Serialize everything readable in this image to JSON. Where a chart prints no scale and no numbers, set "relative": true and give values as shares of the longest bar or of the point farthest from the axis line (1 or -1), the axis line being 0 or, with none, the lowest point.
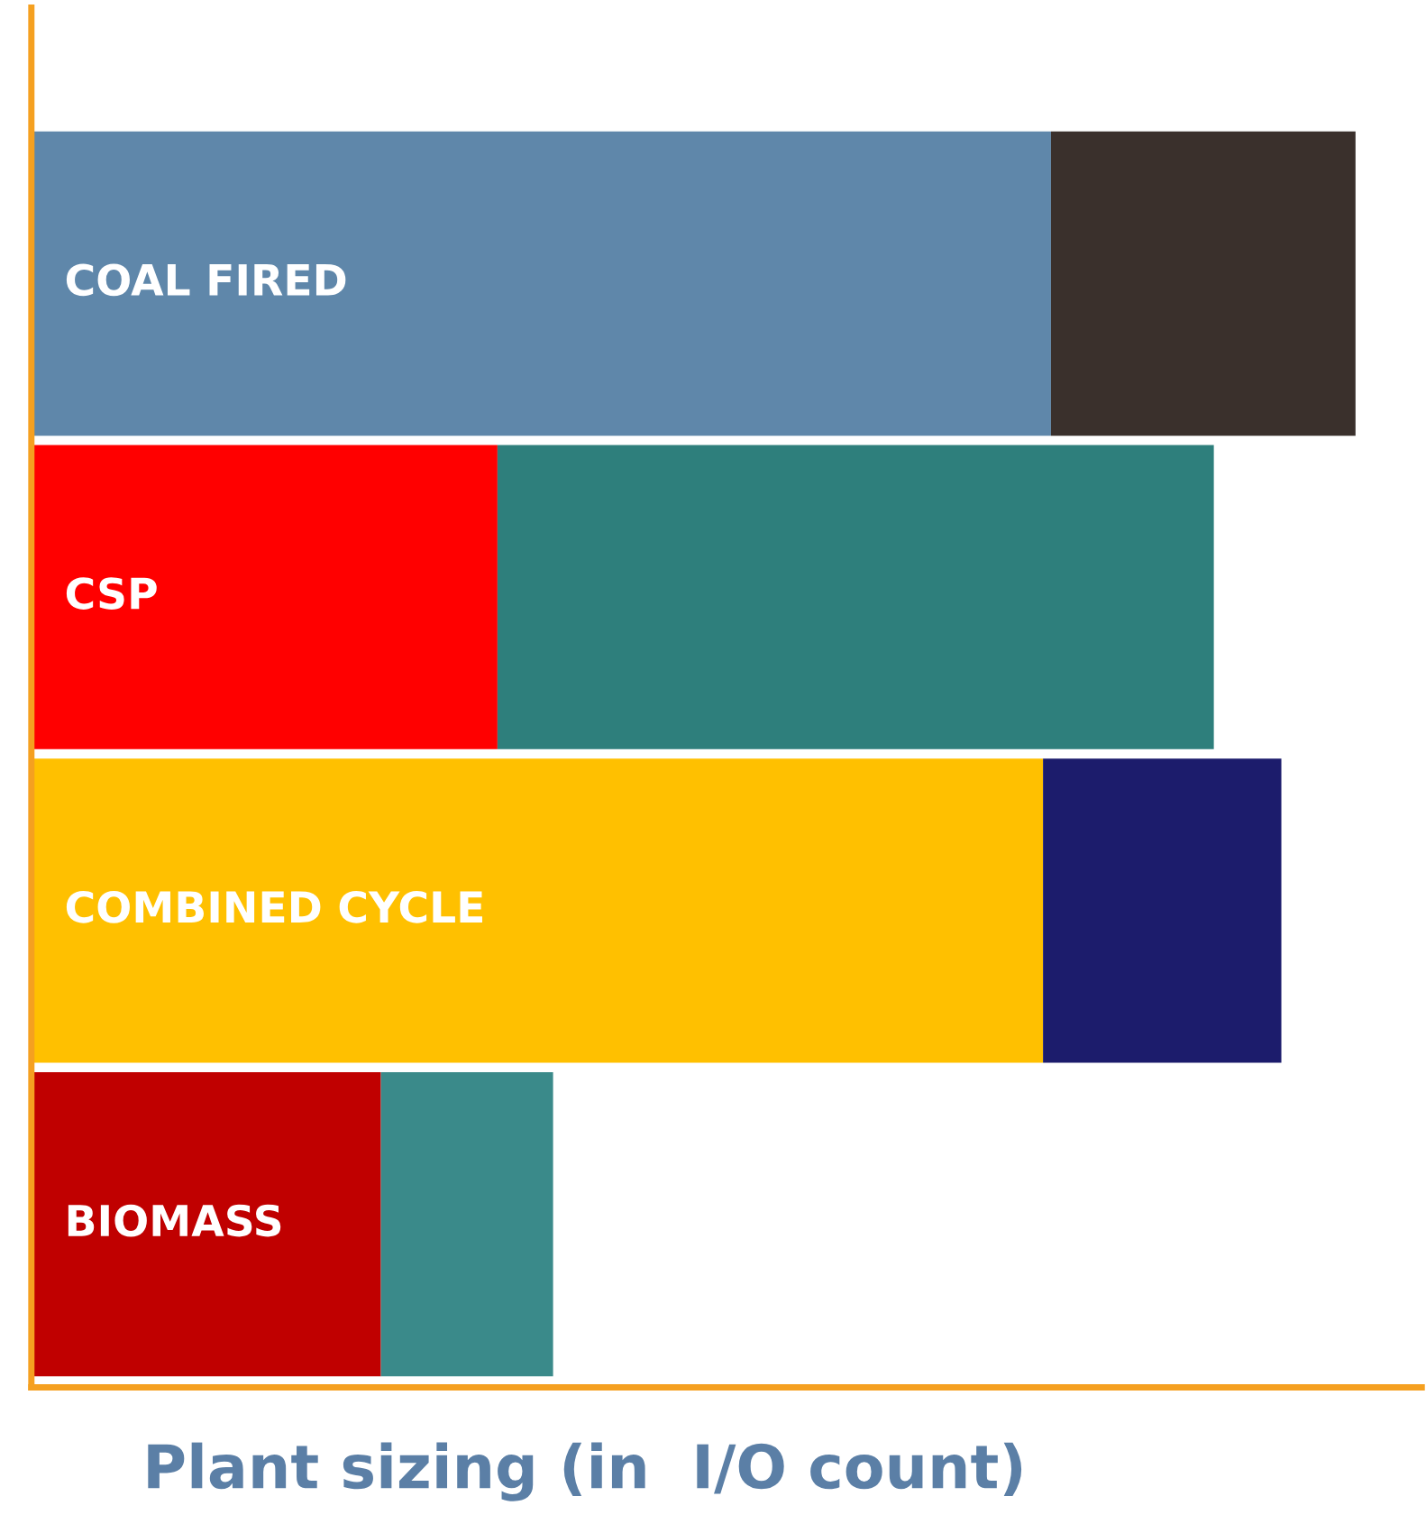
{
  "chart_data": {
    "type": "bar",
    "orientation": "horizontal",
    "stacked": true,
    "relative": true,
    "xlabel": "Plant sizing (in  I/O count)",
    "categories": [
      "COAL FIRED",
      "CSP",
      "COMBINED CYCLE",
      "BIOMASS"
    ],
    "series": [
      {
        "colors": [
          "#5f87aa",
          "#ff0000",
          "#ffc000",
          "#c00000"
        ],
        "values": [
          0.77,
          0.352,
          0.764,
          0.264
        ]
      },
      {
        "colors": [
          "#3a302c",
          "#2e7f7c",
          "#1c1c6c",
          "#3a8a8a"
        ],
        "values": [
          0.23,
          0.541,
          0.18,
          0.13
        ]
      }
    ]
  }
}
